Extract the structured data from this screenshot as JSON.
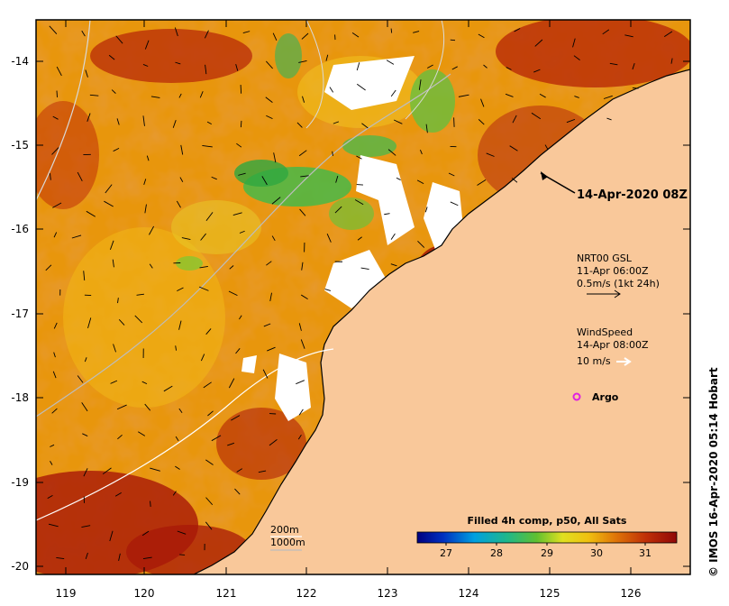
{
  "map": {
    "x_ticks": [
      "119",
      "120",
      "121",
      "122",
      "123",
      "124",
      "125",
      "126"
    ],
    "y_ticks": [
      "-14",
      "-15",
      "-16",
      "-17",
      "-18",
      "-19",
      "-20"
    ]
  },
  "annotations": {
    "timestamp": "14-Apr-2020 08Z",
    "argo_label": "Argo"
  },
  "current_legend": {
    "line1": "NRT00 GSL",
    "line2": "11-Apr 06:00Z",
    "line3": "0.5m/s (1kt 24h)"
  },
  "wind_legend": {
    "line1": "WindSpeed",
    "line2": "14-Apr 08:00Z",
    "line3": "10 m/s"
  },
  "contour_legend": {
    "shallow": "200m",
    "deep": "1000m"
  },
  "colorbar": {
    "title": "Filled 4h comp, p50, All Sats",
    "ticks": [
      "27",
      "28",
      "29",
      "30",
      "31"
    ]
  },
  "credit": "© IMOS 16-Apr-2020 05:14 Hobart",
  "colors": {
    "land": "#f9c89a",
    "sst_hot": "#a01808",
    "sst_warm": "#d86a08",
    "sst_mid": "#e8a010",
    "sst_cool": "#40b040",
    "argo": "#e020e0"
  }
}
